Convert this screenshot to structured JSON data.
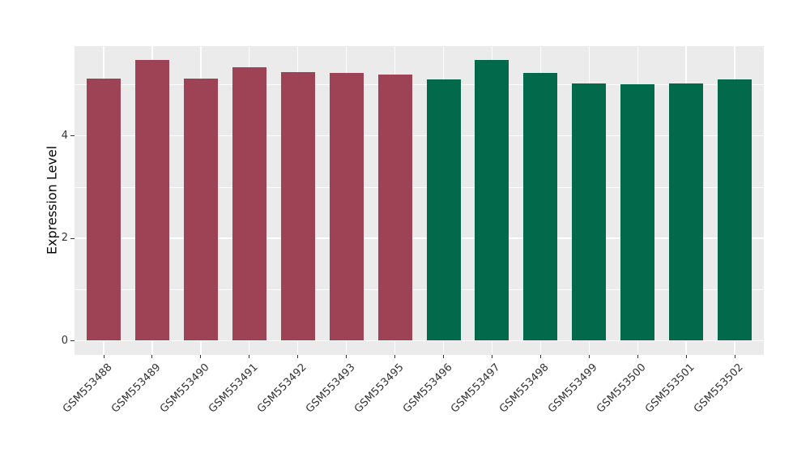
{
  "chart_data": {
    "type": "bar",
    "title": "",
    "xlabel": "",
    "ylabel": "Expression Level",
    "categories": [
      "GSM553488",
      "GSM553489",
      "GSM553490",
      "GSM553491",
      "GSM553492",
      "GSM553493",
      "GSM553495",
      "GSM553496",
      "GSM553497",
      "GSM553498",
      "GSM553499",
      "GSM553500",
      "GSM553501",
      "GSM553502"
    ],
    "values": [
      5.12,
      5.48,
      5.12,
      5.34,
      5.25,
      5.23,
      5.2,
      5.11,
      5.48,
      5.23,
      5.02,
      5.01,
      5.02,
      5.1
    ],
    "bar_colors": [
      "#9E4355",
      "#9E4355",
      "#9E4355",
      "#9E4355",
      "#9E4355",
      "#9E4355",
      "#9E4355",
      "#03694B",
      "#03694B",
      "#03694B",
      "#03694B",
      "#03694B",
      "#03694B",
      "#03694B"
    ],
    "y_ticks_major": [
      0,
      2,
      4
    ],
    "y_ticks_minor": [
      1,
      3,
      5
    ],
    "ylim": [
      0,
      5.775
    ],
    "x_tick_angle": 45,
    "legend": "none",
    "grid": "on",
    "panel_background": "#EBEBEB",
    "grid_color": "#FFFFFF"
  }
}
